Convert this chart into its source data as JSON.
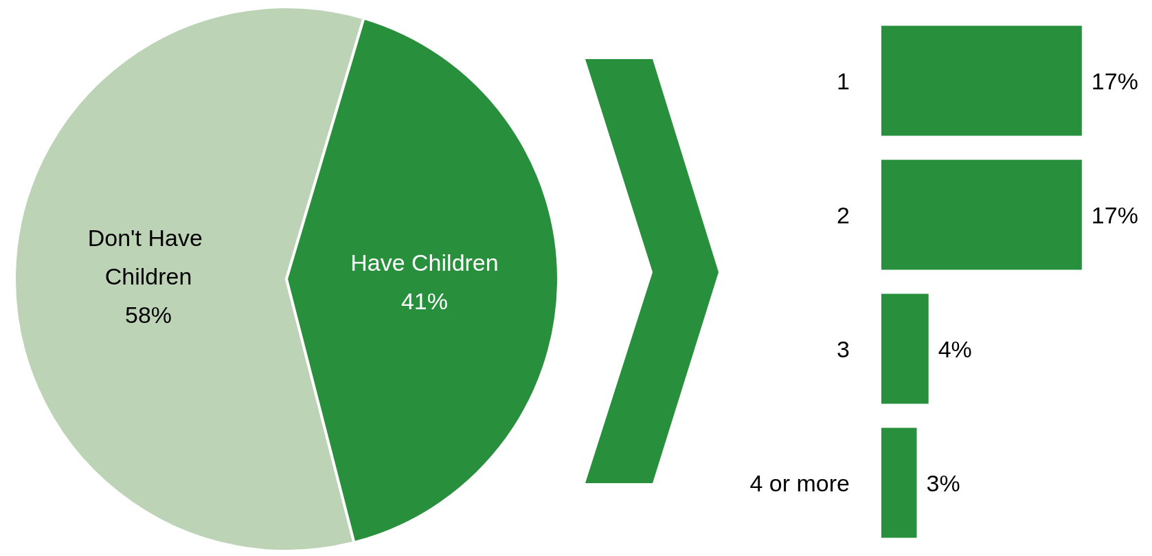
{
  "chart_data": [
    {
      "type": "pie",
      "categories": [
        "Don't Have Children",
        "Have Children"
      ],
      "values": [
        58,
        41
      ],
      "value_labels": [
        "58%",
        "41%"
      ],
      "colors": [
        "#bdd3b5",
        "#28903c"
      ]
    },
    {
      "type": "bar",
      "orientation": "horizontal",
      "categories": [
        "1",
        "2",
        "3",
        "4 or more"
      ],
      "values": [
        17,
        17,
        4,
        3
      ],
      "value_labels": [
        "17%",
        "17%",
        "4%",
        "3%"
      ],
      "color": "#28903c"
    }
  ]
}
